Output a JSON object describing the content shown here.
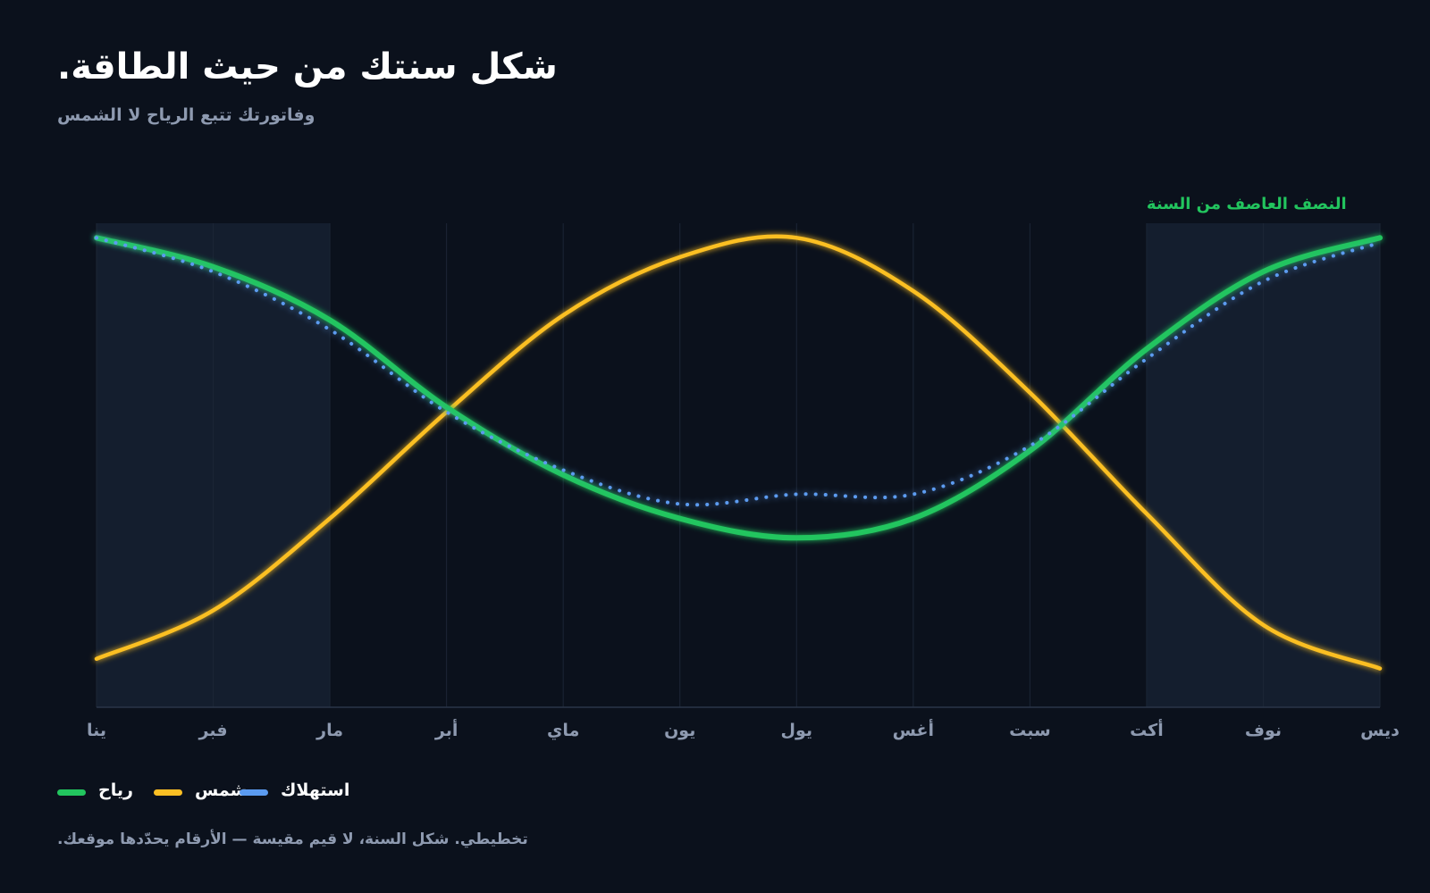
{
  "header": {
    "title": "شكل سنتك من حيث الطاقة.",
    "subtitle": "وفاتورتك تتبع الرياح لا الشمس"
  },
  "footnote": "تخطيطي. شكل السنة، لا قيم مقيسة — الأرقام يحدّدها موقعك.",
  "colors": {
    "background": "#0b111c",
    "wind": "#22c55e",
    "sun": "#fbbf24",
    "consumption": "#5b9bf0",
    "shade": "#141e2e"
  },
  "chart_data": {
    "type": "line",
    "categories": [
      "ينا",
      "فبر",
      "مار",
      "أبر",
      "ماي",
      "يون",
      "يول",
      "أغس",
      "سبت",
      "أكت",
      "نوف",
      "ديس"
    ],
    "ylim": [
      0,
      1
    ],
    "grid": "vertical",
    "series": [
      {
        "name": "رياح",
        "color": "#22c55e",
        "style": "solid",
        "values": [
          0.97,
          0.91,
          0.8,
          0.62,
          0.48,
          0.39,
          0.35,
          0.39,
          0.53,
          0.74,
          0.9,
          0.97
        ]
      },
      {
        "name": "شمس",
        "color": "#fbbf24",
        "style": "solid",
        "values": [
          0.1,
          0.2,
          0.39,
          0.61,
          0.81,
          0.93,
          0.97,
          0.86,
          0.65,
          0.4,
          0.17,
          0.08
        ]
      },
      {
        "name": "استهلاك",
        "color": "#5b9bf0",
        "style": "dotted",
        "values": [
          0.97,
          0.9,
          0.78,
          0.61,
          0.49,
          0.42,
          0.44,
          0.44,
          0.54,
          0.72,
          0.88,
          0.96
        ]
      }
    ],
    "annotations": [
      {
        "text": "النصف العاصف من السنة",
        "type": "shaded-region",
        "ranges": [
          [
            "ينا",
            "مار"
          ],
          [
            "أكت",
            "ديس"
          ]
        ],
        "label_over": "أكت"
      }
    ]
  },
  "legend": {
    "items": [
      {
        "label": "رياح",
        "color": "#22c55e"
      },
      {
        "label": "شمس",
        "color": "#fbbf24"
      },
      {
        "label": "استهلاك",
        "color": "#5b9bf0"
      }
    ]
  }
}
